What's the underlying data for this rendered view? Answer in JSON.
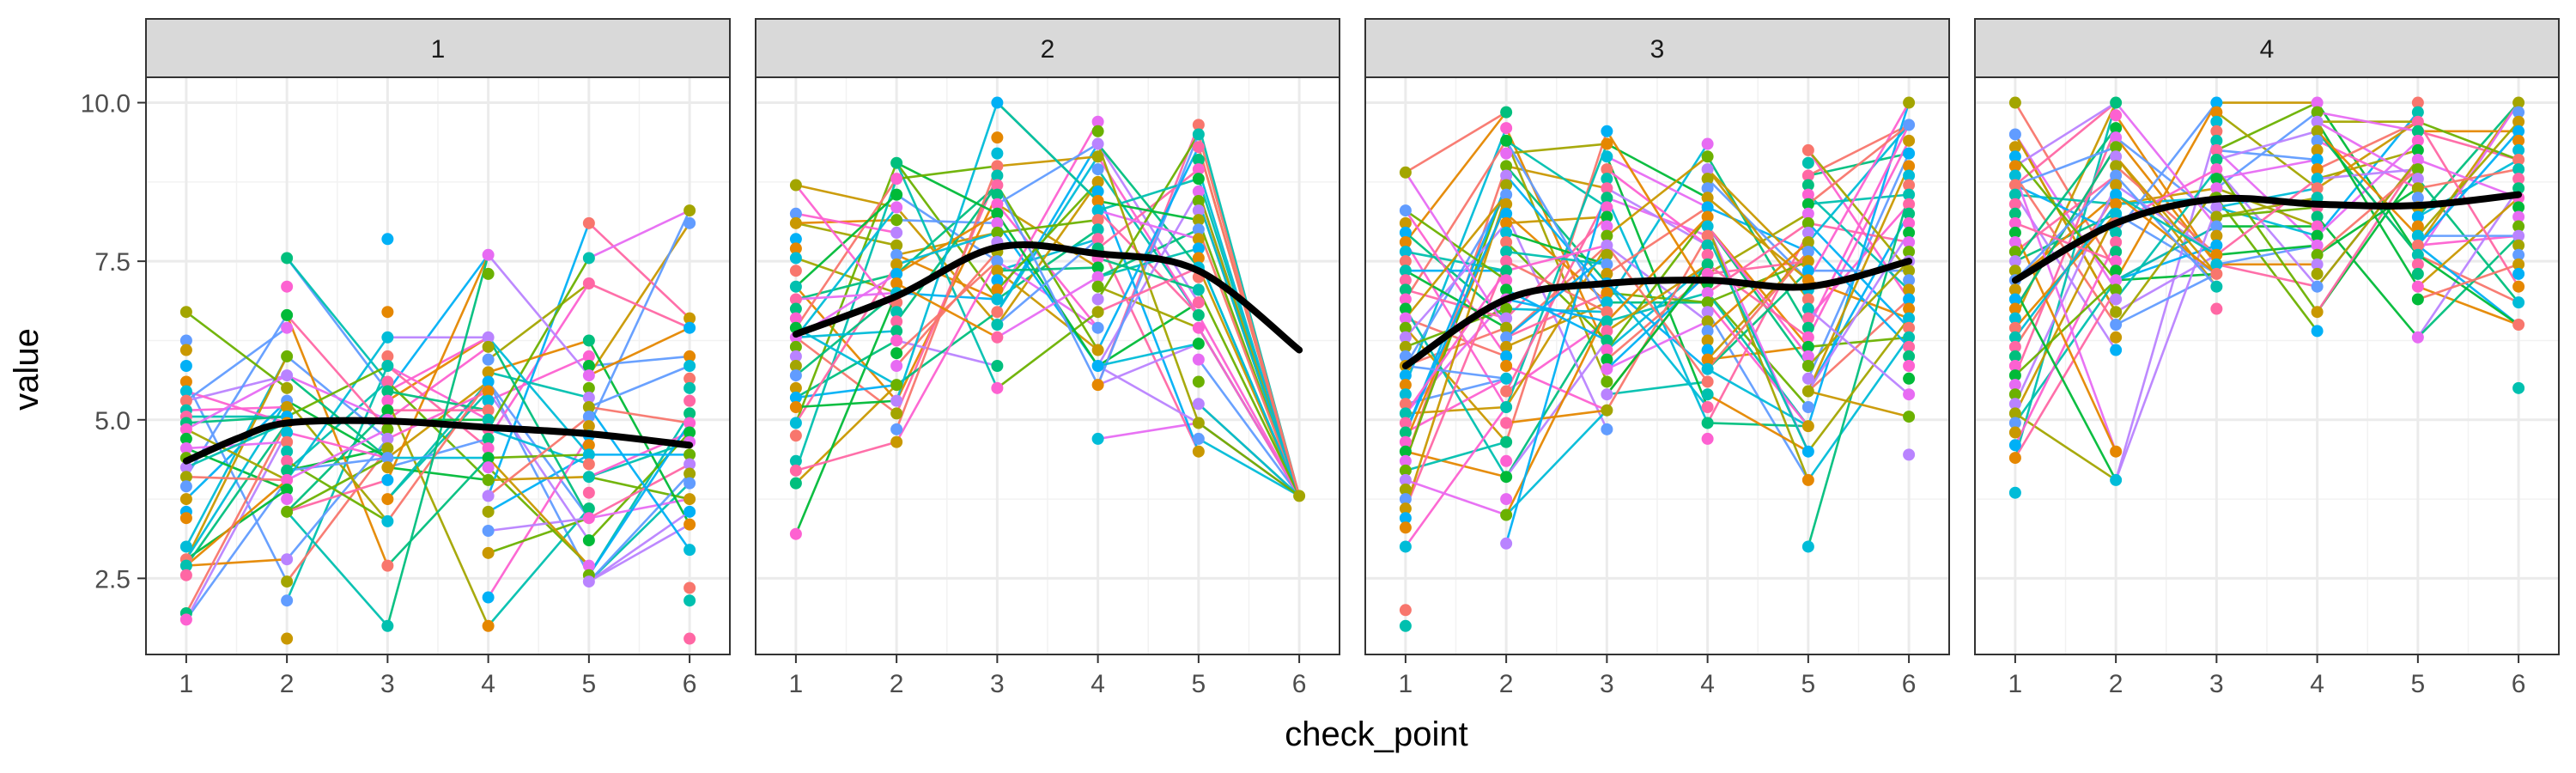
{
  "chart_data": {
    "type": "line",
    "subtype": "faceted spaghetti plot with points and black smoothed trend line",
    "xlabel": "check_point",
    "ylabel": "value",
    "x_ticks": [
      "1",
      "2",
      "3",
      "4",
      "5",
      "6"
    ],
    "y_ticks": [
      "2.5",
      "5.0",
      "7.5",
      "10.0"
    ],
    "ylim": [
      1.3,
      10.4
    ],
    "xlim": [
      0.6,
      6.4
    ],
    "grid": true,
    "legend": "none",
    "series_palette": [
      "#F8766D",
      "#E58700",
      "#C99800",
      "#A3A500",
      "#6BB100",
      "#00BA38",
      "#00BF7D",
      "#00C0AF",
      "#00BCD8",
      "#00B0F6",
      "#619CFF",
      "#B983FF",
      "#E76BF3",
      "#FD61D1",
      "#FF67A4"
    ],
    "trend_color": "#000000",
    "facets": [
      {
        "label": "1",
        "trend": [
          [
            1,
            4.35
          ],
          [
            1.5,
            4.7
          ],
          [
            2,
            4.95
          ],
          [
            3,
            4.98
          ],
          [
            4,
            4.88
          ],
          [
            5,
            4.78
          ],
          [
            6,
            4.6
          ]
        ],
        "point_groups": [
          {
            "x": 1,
            "values": [
              6.7,
              6.25,
              6.1,
              5.85,
              5.6,
              5.45,
              5.3,
              5.15,
              5.05,
              4.95,
              4.85,
              4.7,
              4.55,
              4.4,
              4.25,
              4.1,
              3.95,
              3.75,
              3.55,
              3.45,
              3.0,
              2.8,
              2.7,
              2.55,
              1.95,
              1.85
            ]
          },
          {
            "x": 2,
            "values": [
              7.55,
              7.1,
              6.65,
              6.45,
              6.0,
              5.7,
              5.5,
              5.3,
              5.2,
              5.05,
              4.95,
              4.8,
              4.65,
              4.5,
              4.35,
              4.2,
              4.05,
              3.9,
              3.75,
              3.55,
              2.8,
              2.45,
              2.15,
              1.55
            ]
          },
          {
            "x": 3,
            "values": [
              7.85,
              6.7,
              6.3,
              6.0,
              5.85,
              5.6,
              5.45,
              5.3,
              5.15,
              5.0,
              4.85,
              4.7,
              4.55,
              4.4,
              4.25,
              4.05,
              3.75,
              3.4,
              2.7,
              1.75
            ]
          },
          {
            "x": 4,
            "values": [
              7.6,
              7.3,
              6.3,
              6.15,
              5.95,
              5.75,
              5.6,
              5.45,
              5.3,
              5.15,
              5.0,
              4.85,
              4.7,
              4.55,
              4.4,
              4.25,
              4.05,
              3.8,
              3.55,
              3.25,
              2.9,
              2.2,
              1.75
            ]
          },
          {
            "x": 5,
            "values": [
              8.1,
              7.55,
              7.15,
              6.25,
              6.0,
              5.85,
              5.7,
              5.5,
              5.35,
              5.2,
              5.05,
              4.9,
              4.75,
              4.6,
              4.45,
              4.3,
              4.1,
              3.85,
              3.6,
              3.45,
              3.1,
              2.7,
              2.55,
              2.45
            ]
          },
          {
            "x": 6,
            "values": [
              8.3,
              8.1,
              6.6,
              6.45,
              6.0,
              5.85,
              5.65,
              5.5,
              5.3,
              5.1,
              4.95,
              4.8,
              4.65,
              4.45,
              4.3,
              4.15,
              4.0,
              3.75,
              3.55,
              3.35,
              2.95,
              2.35,
              2.15,
              1.55
            ]
          }
        ]
      },
      {
        "label": "2",
        "trend": [
          [
            1,
            6.35
          ],
          [
            2,
            6.95
          ],
          [
            3,
            7.72
          ],
          [
            4,
            7.62
          ],
          [
            5,
            7.35
          ],
          [
            6,
            6.1
          ]
        ],
        "point_groups": [
          {
            "x": 1,
            "values": [
              8.7,
              8.25,
              8.1,
              7.85,
              7.7,
              7.55,
              7.35,
              7.1,
              6.9,
              6.75,
              6.6,
              6.45,
              6.3,
              6.15,
              6.0,
              5.85,
              5.7,
              5.5,
              5.35,
              5.2,
              4.95,
              4.75,
              4.35,
              4.2,
              4.0,
              3.2
            ]
          },
          {
            "x": 2,
            "values": [
              9.05,
              8.8,
              8.55,
              8.35,
              8.15,
              7.95,
              7.75,
              7.6,
              7.45,
              7.3,
              7.15,
              7.0,
              6.85,
              6.7,
              6.55,
              6.4,
              6.25,
              6.05,
              5.85,
              5.55,
              5.3,
              5.1,
              4.85,
              4.65
            ]
          },
          {
            "x": 3,
            "values": [
              10.0,
              9.45,
              9.2,
              9.0,
              8.85,
              8.7,
              8.55,
              8.4,
              8.25,
              8.1,
              7.95,
              7.8,
              7.65,
              7.5,
              7.35,
              7.2,
              7.05,
              6.9,
              6.7,
              6.5,
              6.3,
              5.85,
              5.5
            ]
          },
          {
            "x": 4,
            "values": [
              9.7,
              9.55,
              9.35,
              9.15,
              8.95,
              8.75,
              8.6,
              8.45,
              8.3,
              8.15,
              8.0,
              7.85,
              7.7,
              7.55,
              7.4,
              7.25,
              7.1,
              6.9,
              6.7,
              6.45,
              6.1,
              5.85,
              5.55,
              4.7
            ]
          },
          {
            "x": 5,
            "values": [
              9.65,
              9.5,
              9.3,
              9.1,
              8.95,
              8.8,
              8.6,
              8.45,
              8.3,
              8.15,
              8.0,
              7.85,
              7.7,
              7.55,
              7.4,
              7.25,
              7.05,
              6.85,
              6.65,
              6.45,
              6.2,
              5.95,
              5.6,
              5.25,
              4.95,
              4.7,
              4.5
            ]
          },
          {
            "x": 6,
            "values": [
              3.8
            ]
          }
        ]
      },
      {
        "label": "3",
        "trend": [
          [
            1,
            5.85
          ],
          [
            2,
            6.9
          ],
          [
            3,
            7.15
          ],
          [
            4,
            7.2
          ],
          [
            5,
            7.1
          ],
          [
            6,
            7.5
          ]
        ],
        "point_groups": [
          {
            "x": 1,
            "values": [
              8.9,
              8.3,
              8.1,
              7.95,
              7.8,
              7.65,
              7.5,
              7.35,
              7.2,
              7.05,
              6.9,
              6.75,
              6.6,
              6.45,
              6.3,
              6.15,
              6.0,
              5.85,
              5.7,
              5.55,
              5.4,
              5.25,
              5.1,
              4.95,
              4.8,
              4.65,
              4.5,
              4.35,
              4.2,
              4.05,
              3.9,
              3.75,
              3.6,
              3.45,
              3.3,
              3.0,
              2.0,
              1.75
            ]
          },
          {
            "x": 2,
            "values": [
              9.85,
              9.6,
              9.4,
              9.2,
              9.0,
              8.85,
              8.7,
              8.55,
              8.4,
              8.25,
              8.1,
              7.95,
              7.8,
              7.65,
              7.5,
              7.35,
              7.2,
              7.05,
              6.9,
              6.75,
              6.6,
              6.45,
              6.3,
              6.15,
              6.0,
              5.85,
              5.65,
              5.45,
              5.2,
              4.95,
              4.65,
              4.35,
              4.1,
              3.75,
              3.5,
              3.05
            ]
          },
          {
            "x": 3,
            "values": [
              9.55,
              9.35,
              9.15,
              8.95,
              8.8,
              8.65,
              8.5,
              8.35,
              8.2,
              8.05,
              7.9,
              7.75,
              7.6,
              7.45,
              7.3,
              7.15,
              7.0,
              6.85,
              6.7,
              6.55,
              6.4,
              6.25,
              6.1,
              5.95,
              5.8,
              5.6,
              5.4,
              5.15,
              4.85
            ]
          },
          {
            "x": 4,
            "values": [
              9.35,
              9.15,
              8.95,
              8.8,
              8.65,
              8.5,
              8.35,
              8.2,
              8.05,
              7.9,
              7.75,
              7.6,
              7.45,
              7.3,
              7.15,
              7.0,
              6.85,
              6.7,
              6.55,
              6.4,
              6.25,
              6.1,
              5.95,
              5.8,
              5.6,
              5.4,
              5.2,
              4.95,
              4.7
            ]
          },
          {
            "x": 5,
            "values": [
              9.25,
              9.05,
              8.85,
              8.7,
              8.55,
              8.4,
              8.25,
              8.1,
              7.95,
              7.8,
              7.65,
              7.5,
              7.35,
              7.2,
              7.05,
              6.9,
              6.75,
              6.6,
              6.45,
              6.3,
              6.15,
              6.0,
              5.85,
              5.65,
              5.45,
              5.2,
              4.9,
              4.5,
              4.05,
              3.0
            ]
          },
          {
            "x": 6,
            "values": [
              10.0,
              9.65,
              9.4,
              9.2,
              9.0,
              8.85,
              8.7,
              8.55,
              8.4,
              8.25,
              8.1,
              7.95,
              7.8,
              7.65,
              7.5,
              7.35,
              7.2,
              7.05,
              6.9,
              6.75,
              6.6,
              6.45,
              6.3,
              6.15,
              6.0,
              5.85,
              5.65,
              5.4,
              5.05,
              4.45
            ]
          }
        ]
      },
      {
        "label": "4",
        "trend": [
          [
            1,
            7.2
          ],
          [
            2,
            8.1
          ],
          [
            3,
            8.48
          ],
          [
            4,
            8.4
          ],
          [
            5,
            8.38
          ],
          [
            6,
            8.55
          ]
        ],
        "point_groups": [
          {
            "x": 1,
            "values": [
              10.0,
              9.5,
              9.3,
              9.15,
              9.0,
              8.85,
              8.7,
              8.55,
              8.4,
              8.25,
              8.1,
              7.95,
              7.8,
              7.65,
              7.5,
              7.35,
              7.2,
              7.05,
              6.9,
              6.75,
              6.6,
              6.45,
              6.3,
              6.15,
              6.0,
              5.85,
              5.7,
              5.55,
              5.4,
              5.25,
              5.1,
              4.95,
              4.8,
              4.6,
              4.4,
              3.85
            ]
          },
          {
            "x": 2,
            "values": [
              10.0,
              9.8,
              9.6,
              9.45,
              9.3,
              9.15,
              9.0,
              8.85,
              8.7,
              8.55,
              8.4,
              8.25,
              8.1,
              7.95,
              7.8,
              7.65,
              7.5,
              7.35,
              7.2,
              7.05,
              6.9,
              6.7,
              6.5,
              6.3,
              6.1,
              4.5,
              4.05
            ]
          },
          {
            "x": 3,
            "values": [
              10.0,
              9.85,
              9.7,
              9.55,
              9.4,
              9.25,
              9.1,
              8.95,
              8.8,
              8.65,
              8.5,
              8.35,
              8.2,
              8.05,
              7.9,
              7.75,
              7.6,
              7.45,
              7.3,
              7.1,
              6.75
            ]
          },
          {
            "x": 4,
            "values": [
              10.0,
              9.85,
              9.7,
              9.55,
              9.4,
              9.25,
              9.1,
              8.95,
              8.8,
              8.65,
              8.5,
              8.35,
              8.2,
              8.05,
              7.9,
              7.75,
              7.6,
              7.45,
              7.3,
              7.1,
              6.7,
              6.4
            ]
          },
          {
            "x": 5,
            "values": [
              10.0,
              9.85,
              9.7,
              9.55,
              9.4,
              9.25,
              9.1,
              8.95,
              8.8,
              8.65,
              8.5,
              8.35,
              8.2,
              8.05,
              7.9,
              7.75,
              7.6,
              7.45,
              7.3,
              7.1,
              6.9,
              6.3
            ]
          },
          {
            "x": 6,
            "values": [
              10.0,
              9.85,
              9.7,
              9.55,
              9.4,
              9.25,
              9.1,
              8.95,
              8.8,
              8.65,
              8.5,
              8.35,
              8.2,
              8.05,
              7.9,
              7.75,
              7.6,
              7.45,
              7.3,
              7.1,
              6.85,
              6.5,
              5.5
            ]
          }
        ]
      }
    ]
  }
}
